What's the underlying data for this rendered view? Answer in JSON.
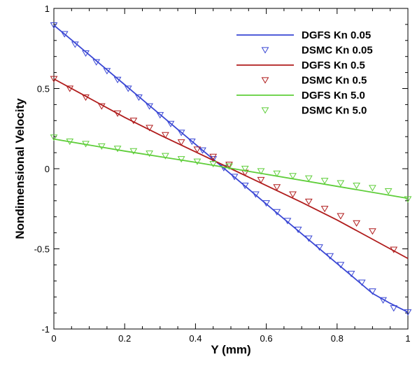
{
  "chart_data": {
    "type": "line",
    "title": "",
    "xlabel": "Y (mm)",
    "ylabel": "Nondimensional Velocity",
    "xlim": [
      0,
      1
    ],
    "ylim": [
      -1,
      1
    ],
    "xticks": [
      0,
      0.2,
      0.4,
      0.6,
      0.8,
      1
    ],
    "xtick_labels": [
      "0",
      "0.2",
      "0.4",
      "0.6",
      "0.8",
      "1"
    ],
    "yticks": [
      -1,
      -0.5,
      0,
      0.5,
      1
    ],
    "ytick_labels": [
      "-1",
      "-0.5",
      "0",
      "0.5",
      "1"
    ],
    "grid": false,
    "legend_position": "top-right",
    "series": [
      {
        "name": "DGFS Kn 0.05",
        "style": "line",
        "color": "#3a47d4",
        "x": [
          0,
          0.05,
          0.1,
          0.15,
          0.2,
          0.25,
          0.3,
          0.35,
          0.4,
          0.45,
          0.5,
          0.55,
          0.6,
          0.65,
          0.7,
          0.75,
          0.8,
          0.85,
          0.9,
          0.95,
          1.0
        ],
        "y": [
          0.895,
          0.803,
          0.71,
          0.617,
          0.524,
          0.431,
          0.338,
          0.245,
          0.152,
          0.059,
          -0.034,
          -0.127,
          -0.22,
          -0.313,
          -0.406,
          -0.499,
          -0.592,
          -0.685,
          -0.778,
          -0.84,
          -0.895
        ]
      },
      {
        "name": "DSMC Kn 0.05",
        "style": "marker",
        "marker": "triangle-down",
        "color": "#3a47d4",
        "x": [
          0.0,
          0.03,
          0.06,
          0.09,
          0.12,
          0.15,
          0.18,
          0.21,
          0.24,
          0.27,
          0.3,
          0.33,
          0.36,
          0.39,
          0.42,
          0.45,
          0.48,
          0.51,
          0.54,
          0.57,
          0.6,
          0.63,
          0.66,
          0.69,
          0.72,
          0.75,
          0.78,
          0.81,
          0.84,
          0.87,
          0.9,
          0.93,
          0.96,
          1.0
        ],
        "y": [
          0.895,
          0.84,
          0.775,
          0.72,
          0.665,
          0.61,
          0.555,
          0.5,
          0.445,
          0.39,
          0.335,
          0.28,
          0.225,
          0.17,
          0.115,
          0.06,
          0.005,
          -0.05,
          -0.105,
          -0.16,
          -0.215,
          -0.27,
          -0.325,
          -0.38,
          -0.435,
          -0.49,
          -0.545,
          -0.6,
          -0.655,
          -0.71,
          -0.765,
          -0.82,
          -0.87,
          -0.895
        ]
      },
      {
        "name": "DGFS Kn 0.5",
        "style": "line",
        "color": "#b01c1c",
        "x": [
          0,
          0.1,
          0.2,
          0.3,
          0.4,
          0.5,
          0.6,
          0.7,
          0.8,
          0.9,
          1.0
        ],
        "y": [
          0.56,
          0.44,
          0.32,
          0.21,
          0.105,
          0.0,
          -0.105,
          -0.21,
          -0.32,
          -0.44,
          -0.56
        ]
      },
      {
        "name": "DSMC Kn 0.5",
        "style": "marker",
        "marker": "triangle-down",
        "color": "#b01c1c",
        "x": [
          0.0,
          0.045,
          0.09,
          0.135,
          0.18,
          0.225,
          0.27,
          0.315,
          0.36,
          0.405,
          0.45,
          0.495,
          0.54,
          0.585,
          0.63,
          0.675,
          0.72,
          0.765,
          0.81,
          0.855,
          0.9,
          0.96
        ],
        "y": [
          0.56,
          0.5,
          0.445,
          0.39,
          0.345,
          0.3,
          0.255,
          0.21,
          0.165,
          0.12,
          0.075,
          0.025,
          -0.025,
          -0.07,
          -0.115,
          -0.16,
          -0.205,
          -0.25,
          -0.295,
          -0.34,
          -0.39,
          -0.505
        ]
      },
      {
        "name": "DGFS Kn 5.0",
        "style": "line",
        "color": "#5fce3a",
        "x": [
          0,
          0.2,
          0.4,
          0.6,
          0.8,
          1.0
        ],
        "y": [
          0.185,
          0.11,
          0.04,
          -0.035,
          -0.11,
          -0.185
        ]
      },
      {
        "name": "DSMC Kn 5.0",
        "style": "marker",
        "marker": "triangle-down",
        "color": "#5fce3a",
        "x": [
          0.0,
          0.045,
          0.09,
          0.135,
          0.18,
          0.225,
          0.27,
          0.315,
          0.36,
          0.405,
          0.45,
          0.495,
          0.54,
          0.585,
          0.63,
          0.675,
          0.72,
          0.765,
          0.81,
          0.855,
          0.9,
          0.945,
          1.0
        ],
        "y": [
          0.195,
          0.17,
          0.155,
          0.14,
          0.125,
          0.11,
          0.095,
          0.08,
          0.06,
          0.045,
          0.03,
          0.015,
          0.0,
          -0.015,
          -0.03,
          -0.045,
          -0.06,
          -0.075,
          -0.09,
          -0.105,
          -0.12,
          -0.14,
          -0.19
        ]
      }
    ]
  }
}
